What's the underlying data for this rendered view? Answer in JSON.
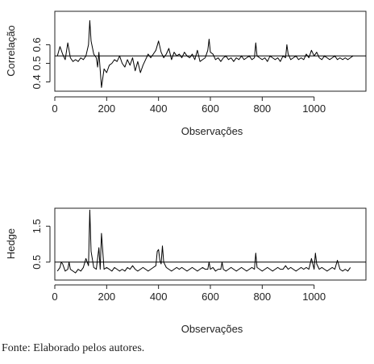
{
  "chart_data": [
    {
      "type": "line",
      "title": "",
      "xlabel": "Observações",
      "ylabel": "Correlação",
      "xlim": [
        0,
        1200
      ],
      "ylim": [
        0.35,
        0.78
      ],
      "x_ticks": [
        0,
        200,
        400,
        600,
        800,
        1000
      ],
      "x_tick_labels": [
        "0",
        "200",
        "400",
        "600",
        "800",
        "1000"
      ],
      "y_ticks": [
        0.4,
        0.5,
        0.6
      ],
      "y_tick_labels": [
        "0.4",
        "0.5",
        "0.6"
      ],
      "reference_line": 0.54,
      "series": [
        {
          "x": [
            10,
            20,
            30,
            40,
            50,
            60,
            70,
            80,
            90,
            100,
            110,
            120,
            130,
            135,
            140,
            150,
            160,
            165,
            170,
            180,
            190,
            200,
            210,
            220,
            230,
            240,
            250,
            260,
            270,
            280,
            290,
            300,
            310,
            320,
            330,
            340,
            350,
            360,
            370,
            380,
            390,
            400,
            410,
            420,
            430,
            440,
            450,
            460,
            470,
            480,
            490,
            500,
            510,
            520,
            530,
            540,
            550,
            560,
            570,
            580,
            590,
            595,
            600,
            610,
            620,
            630,
            640,
            650,
            660,
            670,
            680,
            690,
            700,
            710,
            720,
            730,
            740,
            750,
            760,
            770,
            775,
            780,
            790,
            800,
            810,
            820,
            830,
            840,
            850,
            860,
            870,
            880,
            890,
            895,
            900,
            910,
            920,
            930,
            940,
            950,
            960,
            970,
            980,
            990,
            1000,
            1010,
            1020,
            1030,
            1040,
            1050,
            1060,
            1070,
            1080,
            1090,
            1100,
            1110,
            1120,
            1130,
            1140,
            1150
          ],
          "values": [
            0.54,
            0.59,
            0.55,
            0.52,
            0.61,
            0.53,
            0.51,
            0.52,
            0.51,
            0.53,
            0.52,
            0.54,
            0.6,
            0.73,
            0.62,
            0.55,
            0.53,
            0.48,
            0.56,
            0.37,
            0.47,
            0.45,
            0.49,
            0.5,
            0.52,
            0.51,
            0.54,
            0.5,
            0.48,
            0.52,
            0.49,
            0.53,
            0.46,
            0.51,
            0.45,
            0.49,
            0.52,
            0.55,
            0.53,
            0.55,
            0.57,
            0.62,
            0.56,
            0.53,
            0.55,
            0.58,
            0.52,
            0.56,
            0.54,
            0.55,
            0.53,
            0.56,
            0.54,
            0.53,
            0.55,
            0.52,
            0.57,
            0.51,
            0.52,
            0.53,
            0.57,
            0.63,
            0.56,
            0.55,
            0.52,
            0.53,
            0.51,
            0.53,
            0.54,
            0.52,
            0.53,
            0.51,
            0.53,
            0.52,
            0.54,
            0.52,
            0.53,
            0.54,
            0.52,
            0.53,
            0.61,
            0.54,
            0.53,
            0.52,
            0.53,
            0.51,
            0.54,
            0.53,
            0.52,
            0.53,
            0.51,
            0.54,
            0.53,
            0.6,
            0.55,
            0.52,
            0.53,
            0.54,
            0.52,
            0.53,
            0.52,
            0.55,
            0.53,
            0.57,
            0.54,
            0.56,
            0.53,
            0.52,
            0.54,
            0.53,
            0.52,
            0.53,
            0.54,
            0.52,
            0.53,
            0.52,
            0.53,
            0.52,
            0.53,
            0.54
          ]
        }
      ]
    },
    {
      "type": "line",
      "title": "",
      "xlabel": "Observações",
      "ylabel": "Hedge",
      "xlim": [
        0,
        1200
      ],
      "ylim": [
        0.0,
        2.0
      ],
      "x_ticks": [
        0,
        200,
        400,
        600,
        800,
        1000
      ],
      "x_tick_labels": [
        "0",
        "200",
        "400",
        "600",
        "800",
        "1000"
      ],
      "y_ticks": [
        0.5,
        1.5
      ],
      "y_tick_labels": [
        "0.5",
        "1.5"
      ],
      "reference_line": 0.5,
      "series": [
        {
          "x": [
            10,
            20,
            25,
            30,
            40,
            50,
            55,
            60,
            70,
            80,
            90,
            100,
            110,
            120,
            130,
            135,
            140,
            150,
            160,
            170,
            175,
            180,
            190,
            200,
            210,
            220,
            230,
            240,
            250,
            260,
            270,
            280,
            290,
            300,
            310,
            320,
            330,
            340,
            350,
            360,
            370,
            380,
            390,
            395,
            400,
            405,
            410,
            415,
            420,
            430,
            440,
            450,
            460,
            470,
            480,
            490,
            500,
            510,
            520,
            530,
            540,
            550,
            560,
            570,
            580,
            590,
            595,
            600,
            610,
            620,
            630,
            640,
            645,
            650,
            660,
            670,
            680,
            690,
            700,
            710,
            720,
            730,
            740,
            750,
            760,
            770,
            775,
            780,
            790,
            800,
            810,
            820,
            830,
            840,
            850,
            860,
            870,
            880,
            890,
            895,
            900,
            910,
            920,
            930,
            940,
            950,
            960,
            970,
            980,
            990,
            1000,
            1005,
            1010,
            1020,
            1030,
            1040,
            1050,
            1060,
            1070,
            1080,
            1090,
            1100,
            1110,
            1120,
            1130,
            1140
          ],
          "values": [
            0.25,
            0.35,
            0.5,
            0.45,
            0.25,
            0.3,
            0.5,
            0.3,
            0.25,
            0.2,
            0.3,
            0.25,
            0.35,
            0.6,
            0.4,
            1.95,
            0.8,
            0.35,
            0.3,
            0.9,
            0.3,
            1.3,
            0.3,
            0.35,
            0.3,
            0.25,
            0.35,
            0.3,
            0.25,
            0.3,
            0.25,
            0.35,
            0.3,
            0.4,
            0.3,
            0.25,
            0.3,
            0.35,
            0.3,
            0.25,
            0.3,
            0.35,
            0.4,
            0.8,
            0.85,
            0.55,
            0.45,
            0.95,
            0.5,
            0.35,
            0.3,
            0.25,
            0.3,
            0.35,
            0.3,
            0.35,
            0.3,
            0.25,
            0.3,
            0.35,
            0.3,
            0.25,
            0.3,
            0.35,
            0.3,
            0.3,
            0.5,
            0.3,
            0.35,
            0.25,
            0.3,
            0.3,
            0.5,
            0.3,
            0.25,
            0.3,
            0.35,
            0.3,
            0.25,
            0.3,
            0.35,
            0.3,
            0.25,
            0.3,
            0.35,
            0.3,
            0.75,
            0.35,
            0.3,
            0.25,
            0.3,
            0.35,
            0.3,
            0.25,
            0.3,
            0.35,
            0.3,
            0.3,
            0.4,
            0.35,
            0.3,
            0.35,
            0.3,
            0.25,
            0.3,
            0.35,
            0.3,
            0.35,
            0.3,
            0.6,
            0.3,
            0.75,
            0.45,
            0.3,
            0.35,
            0.3,
            0.25,
            0.3,
            0.35,
            0.3,
            0.55,
            0.3,
            0.25,
            0.3,
            0.25,
            0.35
          ]
        }
      ]
    }
  ],
  "footer": {
    "source_text": "Fonte: Elaborado pelos autores."
  }
}
